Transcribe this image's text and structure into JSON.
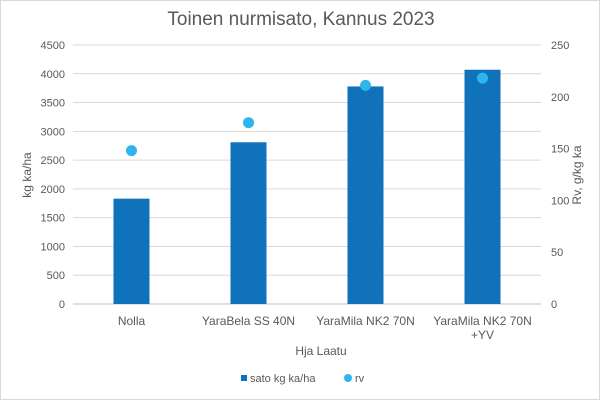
{
  "chart_data": {
    "type": "bar",
    "title": "Toinen nurmisato, Kannus 2023",
    "xlabel": "Hja Laatu",
    "ylabel": "kg ka/ha",
    "y2label": "Rv, g/kg ka",
    "categories": [
      [
        "Nolla"
      ],
      [
        "YaraBela SS 40N"
      ],
      [
        "YaraMila NK2 70N"
      ],
      [
        "YaraMila NK2 70N",
        "+YV"
      ]
    ],
    "ylim": [
      0,
      4500
    ],
    "yticks": [
      0,
      500,
      1000,
      1500,
      2000,
      2500,
      3000,
      3500,
      4000,
      4500
    ],
    "y2lim": [
      0,
      250
    ],
    "y2ticks": [
      0,
      50,
      100,
      150,
      200,
      250
    ],
    "grid": true,
    "legend_position": "bottom",
    "series": [
      {
        "name": "sato kg ka/ha",
        "type": "bar",
        "axis": "left",
        "color": "#0f72ba",
        "values": [
          1830,
          2810,
          3780,
          4070
        ]
      },
      {
        "name": "rv",
        "type": "scatter",
        "axis": "right",
        "color": "#2eb5eb",
        "values": [
          148,
          175,
          211,
          218
        ]
      }
    ]
  }
}
